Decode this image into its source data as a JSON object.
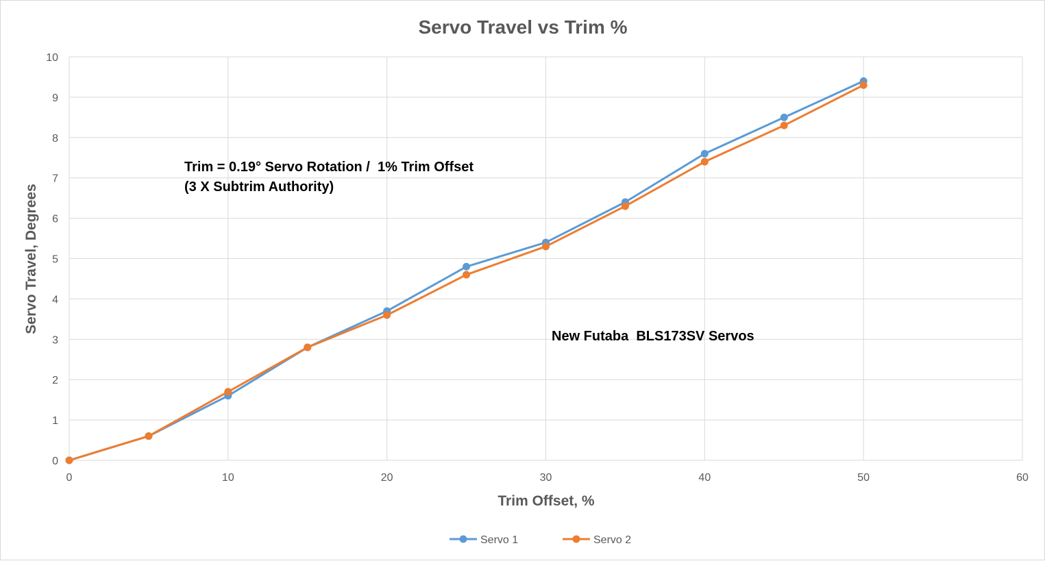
{
  "chart_data": {
    "type": "line",
    "title": "Servo Travel vs Trim %",
    "xlabel": "Trim Offset, %",
    "ylabel": "Servo Travel, Degrees",
    "xlim": [
      0,
      60
    ],
    "ylim": [
      0,
      10
    ],
    "x_ticks": [
      "0",
      "10",
      "20",
      "30",
      "40",
      "50",
      "60"
    ],
    "y_ticks": [
      "0",
      "1",
      "2",
      "3",
      "4",
      "5",
      "6",
      "7",
      "8",
      "9",
      "10"
    ],
    "grid": true,
    "legend_position": "bottom",
    "x": [
      0,
      5,
      10,
      15,
      20,
      25,
      30,
      35,
      40,
      45,
      50
    ],
    "series": [
      {
        "name": "Servo 1",
        "color": "#5b9bd5",
        "values": [
          0,
          0.6,
          1.6,
          2.8,
          3.7,
          4.8,
          5.4,
          6.4,
          7.6,
          8.5,
          9.4
        ]
      },
      {
        "name": "Servo 2",
        "color": "#ed7d31",
        "values": [
          0,
          0.6,
          1.7,
          2.8,
          3.6,
          4.6,
          5.3,
          6.3,
          7.4,
          8.3,
          9.3
        ]
      }
    ],
    "annotations": [
      "Trim = 0.19° Servo Rotation /  1% Trim Offset",
      "(3 X Subtrim Authority)",
      "New Futaba  BLS173SV Servos"
    ]
  }
}
